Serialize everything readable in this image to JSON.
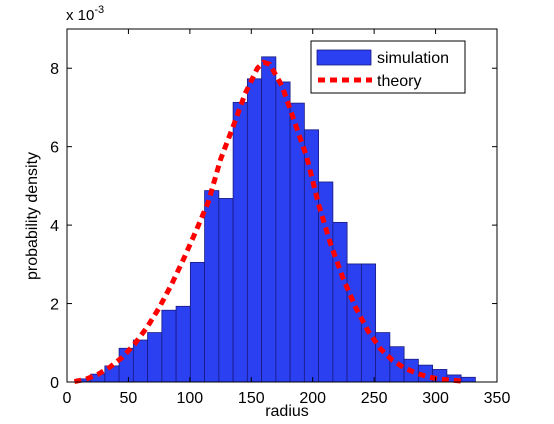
{
  "chart_data": {
    "type": "bar",
    "xlabel": "radius",
    "ylabel": "probability density",
    "y_multiplier_base": "x 10",
    "y_multiplier_exponent": "-3",
    "xlim": [
      0,
      350
    ],
    "ylim": [
      0,
      0.009
    ],
    "x_ticks": [
      0,
      50,
      100,
      150,
      200,
      250,
      300,
      350
    ],
    "x_tick_labels": [
      "0",
      "50",
      "100",
      "150",
      "200",
      "250",
      "300",
      "350"
    ],
    "y_ticks": [
      0,
      0.002,
      0.004,
      0.006,
      0.008
    ],
    "y_tick_labels": [
      "0",
      "2",
      "4",
      "6",
      "8"
    ],
    "grid": false,
    "legend_position": "top-right",
    "legend": [
      {
        "label": "simulation",
        "kind": "bar",
        "color": "#2b40f0"
      },
      {
        "label": "theory",
        "kind": "dotted-line",
        "color": "#ff0000"
      }
    ],
    "histogram": {
      "name": "simulation",
      "bin_width": 11.6,
      "bin_starts": [
        7.6,
        19.2,
        30.8,
        42.4,
        54.0,
        65.6,
        77.2,
        88.8,
        100.4,
        112.0,
        123.6,
        135.2,
        146.8,
        158.4,
        170.0,
        181.6,
        193.2,
        204.8,
        216.4,
        228.0,
        239.6,
        251.2,
        262.8,
        274.4,
        286.0,
        297.6,
        309.2,
        320.8
      ],
      "values": [
        8e-05,
        0.0002,
        0.00041,
        0.00086,
        0.00107,
        0.00126,
        0.00183,
        0.00193,
        0.00305,
        0.00488,
        0.00468,
        0.00713,
        0.00773,
        0.00829,
        0.00765,
        0.00711,
        0.00643,
        0.0051,
        0.00407,
        0.00301,
        0.00301,
        0.00126,
        0.0009,
        0.00058,
        0.00043,
        0.00032,
        0.00018,
        0.00012
      ],
      "color": "#2b40f0",
      "edge_color": "#1a1a80"
    },
    "theory_curve": {
      "name": "theory",
      "x": [
        6,
        15,
        25,
        35,
        45,
        55,
        65,
        75,
        85,
        95,
        105,
        115,
        125,
        135,
        145,
        155,
        160,
        165,
        175,
        185,
        195,
        205,
        215,
        225,
        235,
        245,
        255,
        265,
        275,
        285,
        295,
        305,
        315,
        322
      ],
      "y": [
        1e-05,
        7e-05,
        0.00019,
        0.00038,
        0.00063,
        0.00097,
        0.00139,
        0.00189,
        0.00248,
        0.00314,
        0.00385,
        0.00459,
        0.00568,
        0.0065,
        0.00735,
        0.008,
        0.00815,
        0.0081,
        0.00755,
        0.00665,
        0.00575,
        0.0045,
        0.00348,
        0.00262,
        0.0019,
        0.0013,
        0.00085,
        0.00055,
        0.00035,
        0.00022,
        0.00012,
        7e-05,
        4e-05,
        2e-05
      ],
      "color": "#ff0000",
      "style": "dotted"
    }
  }
}
